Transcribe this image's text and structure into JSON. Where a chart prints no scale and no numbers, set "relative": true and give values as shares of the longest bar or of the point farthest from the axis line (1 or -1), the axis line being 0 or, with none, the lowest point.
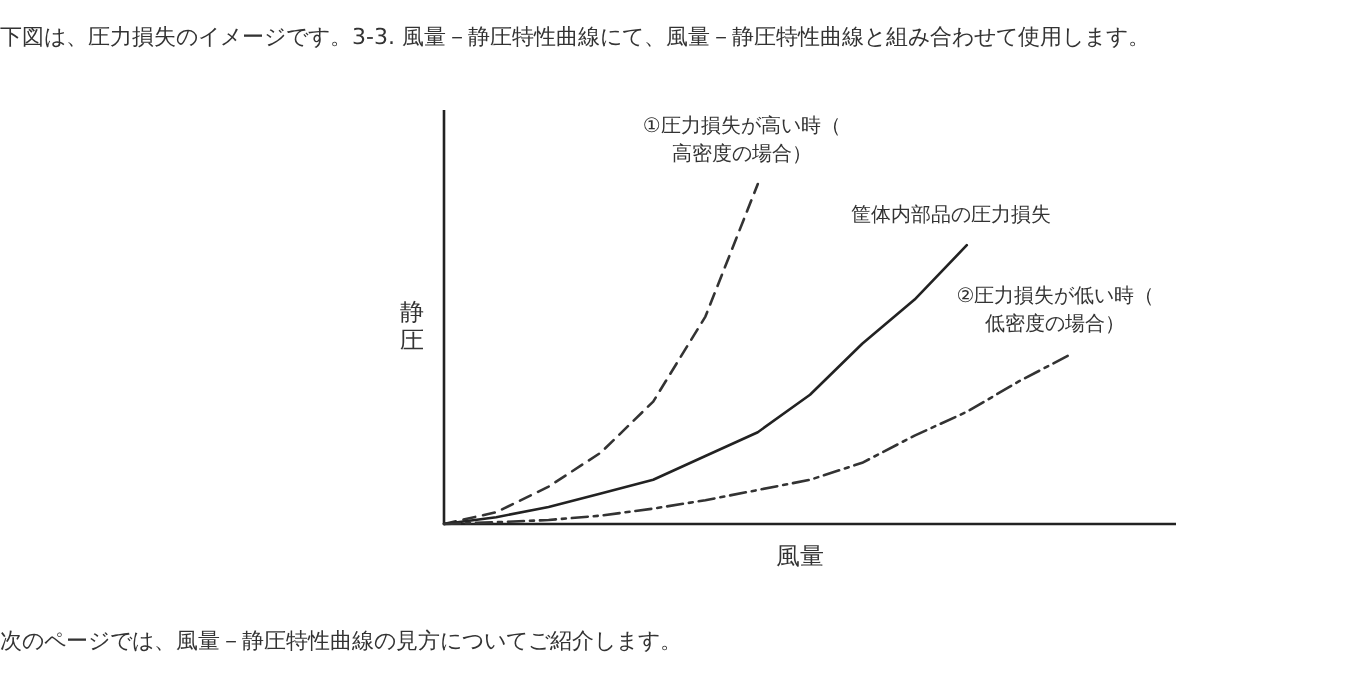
{
  "chart_data": {
    "type": "line",
    "relative": true,
    "title": "下図は、圧力損失のイメージです。3-3. 風量－静圧特性曲線にて、風量－静圧特性曲線と組み合わせて使用します。",
    "annotations": [
      "次のページでは、風量－静圧特性曲線の見方についてご紹介します。"
    ],
    "xlabel": "風量",
    "ylabel": "静圧",
    "categories": [
      null,
      null,
      null,
      null,
      null,
      null,
      null,
      null,
      null,
      null,
      null,
      null,
      null,
      null,
      null
    ],
    "series": [
      {
        "name": "①圧力損失が高い時（高密度の場合）",
        "color": "#333333",
        "line_style": "dashed",
        "values": [
          0,
          0.035,
          0.11,
          0.21,
          0.36,
          0.61,
          1,
          null,
          null,
          null,
          null,
          null,
          null,
          null,
          null
        ]
      },
      {
        "name": "筐体内部品の圧力損失",
        "color": "#222222",
        "line_style": "solid",
        "values": [
          0,
          0.02,
          0.05,
          0.09,
          0.13,
          0.2,
          0.27,
          0.38,
          0.53,
          0.66,
          0.82,
          null,
          null,
          null,
          null
        ]
      },
      {
        "name": "②圧力損失が低い時（低密度の場合）",
        "color": "#333333",
        "line_style": "dashdot",
        "values": [
          0,
          0.005,
          0.012,
          0.025,
          0.045,
          0.07,
          0.1,
          0.13,
          0.18,
          0.26,
          0.33,
          0.42,
          0.5,
          null,
          null
        ]
      }
    ]
  }
}
